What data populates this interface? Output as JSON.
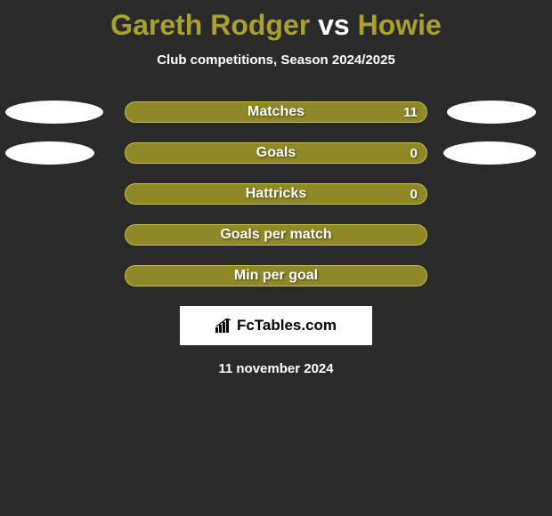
{
  "title": {
    "player1": "Gareth Rodger",
    "vs": " vs ",
    "player2": "Howie",
    "player1_color": "#a9a12f",
    "vs_color": "#ffffff",
    "player2_color": "#a9a12f"
  },
  "subtitle": "Club competitions, Season 2024/2025",
  "bar_style": {
    "track_color": "#a9a12f",
    "track_border": "#c9c14f",
    "fill_color": "#8f8826",
    "label_color": "#ffffff"
  },
  "rows": [
    {
      "label": "Matches",
      "value": "11",
      "fill_pct": 100,
      "show_value": true,
      "left_ellipse": true,
      "right_ellipse": true,
      "left_ellipse_w": 110,
      "right_ellipse_w": 100
    },
    {
      "label": "Goals",
      "value": "0",
      "fill_pct": 100,
      "show_value": true,
      "left_ellipse": true,
      "right_ellipse": true,
      "left_ellipse_w": 100,
      "right_ellipse_w": 104
    },
    {
      "label": "Hattricks",
      "value": "0",
      "fill_pct": 100,
      "show_value": true,
      "left_ellipse": false,
      "right_ellipse": false
    },
    {
      "label": "Goals per match",
      "value": "",
      "fill_pct": 100,
      "show_value": false,
      "left_ellipse": false,
      "right_ellipse": false
    },
    {
      "label": "Min per goal",
      "value": "",
      "fill_pct": 100,
      "show_value": false,
      "left_ellipse": false,
      "right_ellipse": false
    }
  ],
  "logo": {
    "icon_name": "bar-chart-icon",
    "text": "FcTables.com",
    "text_color": "#000000",
    "bg_color": "#ffffff"
  },
  "date": "11 november 2024",
  "background_color": "#2a2a2a"
}
